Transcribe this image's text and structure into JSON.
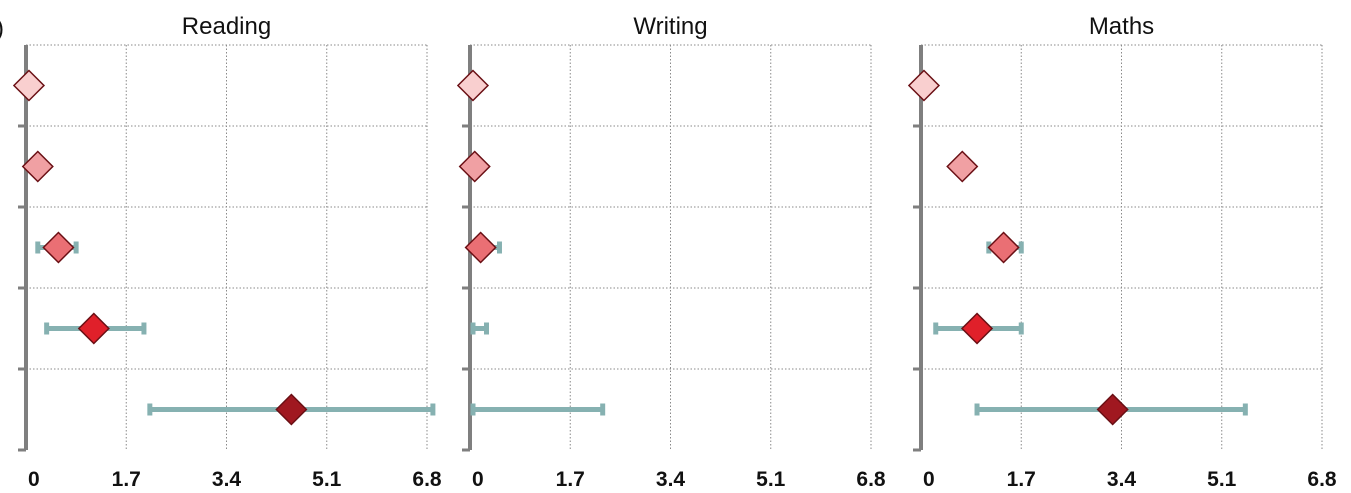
{
  "edge_label": ")",
  "chart_data": {
    "type": "scatter",
    "shared": {
      "xlim": [
        0,
        6.8
      ],
      "x_ticks": [
        "0",
        "1.7",
        "3.4",
        "5.1",
        "6.8"
      ],
      "x_tick_values": [
        0,
        1.7,
        3.4,
        5.1,
        6.8
      ],
      "row_count": 5,
      "grid": true,
      "grid_style": "dotted",
      "marker": "diamond",
      "marker_colors": [
        "#f9cfcf",
        "#f0a0a3",
        "#ea6f74",
        "#e0202a",
        "#a01820"
      ],
      "marker_edge_color": "#6a0f14",
      "error_bar_color": "#86b1b1",
      "axis_color": "#7f7f7f"
    },
    "panels": [
      {
        "title": "Reading",
        "points": [
          {
            "x": 0.05,
            "low": null,
            "high": null
          },
          {
            "x": 0.2,
            "low": null,
            "high": null
          },
          {
            "x": 0.55,
            "low": 0.2,
            "high": 0.85
          },
          {
            "x": 1.15,
            "low": 0.35,
            "high": 2.0
          },
          {
            "x": 4.5,
            "low": 2.1,
            "high": 6.9
          }
        ]
      },
      {
        "title": "Writing",
        "points": [
          {
            "x": 0.05,
            "low": null,
            "high": null
          },
          {
            "x": 0.08,
            "low": null,
            "high": null
          },
          {
            "x": 0.18,
            "low": 0.05,
            "high": 0.5
          },
          {
            "x": null,
            "low": 0.05,
            "high": 0.28
          },
          {
            "x": null,
            "low": 0.0,
            "high": 2.25
          }
        ]
      },
      {
        "title": "Maths",
        "points": [
          {
            "x": 0.05,
            "low": null,
            "high": null
          },
          {
            "x": 0.7,
            "low": null,
            "high": null
          },
          {
            "x": 1.4,
            "low": 1.15,
            "high": 1.7
          },
          {
            "x": 0.95,
            "low": 0.25,
            "high": 1.7
          },
          {
            "x": 3.25,
            "low": 0.95,
            "high": 5.5
          }
        ]
      }
    ]
  }
}
